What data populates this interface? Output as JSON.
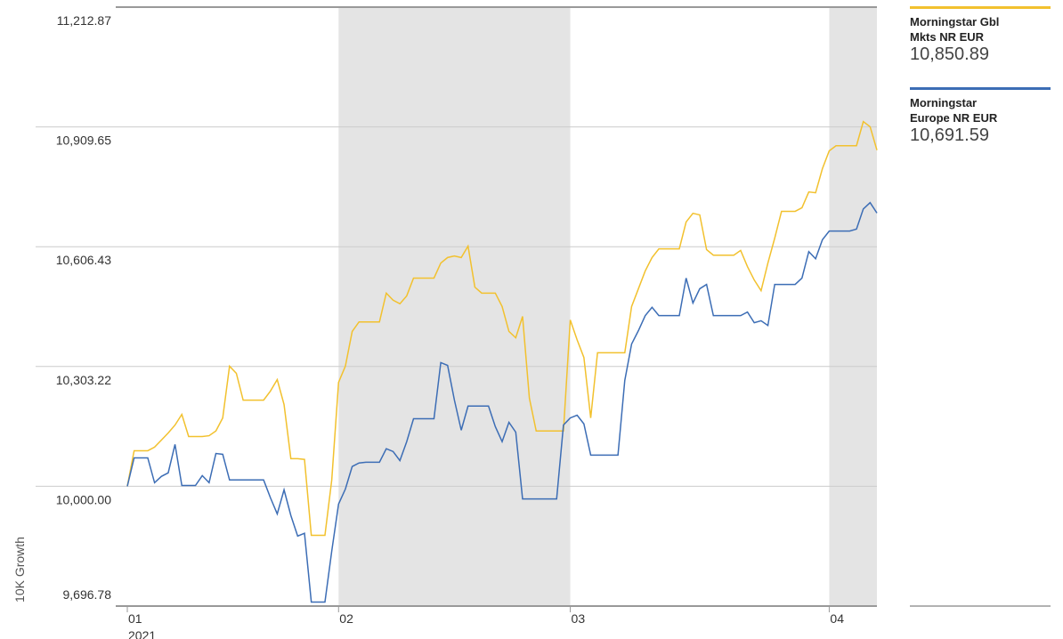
{
  "chart_data": {
    "type": "line",
    "y_label": "10K Growth",
    "year_label": "2021",
    "categories": [
      "01",
      null,
      null,
      null,
      null,
      null,
      null,
      null,
      null,
      null,
      null,
      null,
      null,
      null,
      null,
      null,
      null,
      null,
      null,
      null,
      null,
      null,
      null,
      null,
      null,
      null,
      null,
      null,
      null,
      null,
      null,
      "02",
      null,
      null,
      null,
      null,
      null,
      null,
      null,
      null,
      null,
      null,
      null,
      null,
      null,
      null,
      null,
      null,
      null,
      null,
      null,
      null,
      null,
      null,
      null,
      null,
      null,
      null,
      null,
      null,
      null,
      null,
      null,
      null,
      null,
      "03",
      null,
      null,
      null,
      null,
      null,
      null,
      null,
      null,
      null,
      null,
      null,
      null,
      null,
      null,
      null,
      null,
      null,
      null,
      null,
      null,
      null,
      null,
      null,
      null,
      null,
      null,
      null,
      null,
      null,
      null,
      null,
      null,
      null,
      null,
      null,
      null,
      null,
      "04",
      null,
      null,
      null,
      null,
      null,
      null,
      null
    ],
    "ylim": [
      9696.78,
      11212.87
    ],
    "yticks": [
      {
        "value": 9696.78,
        "label": "9,696.78"
      },
      {
        "value": 10000,
        "label": "10,000.00"
      },
      {
        "value": 10303.22,
        "label": "10,303.22"
      },
      {
        "value": 10606.43,
        "label": "10,606.43"
      },
      {
        "value": 10909.65,
        "label": "10,909.65"
      },
      {
        "value": 11212.87,
        "label": "11,212.87"
      }
    ],
    "grid": true,
    "series": [
      {
        "name": "Morningstar Gbl Mkts NR EUR",
        "color": "#f2c12e",
        "legend_value": {
          "value": 10850.89,
          "label": "10,850.89"
        },
        "values": [
          10000,
          10090,
          10090,
          10090,
          10099,
          10117,
          10135,
          10155,
          10182,
          10126,
          10126,
          10126,
          10128,
          10140,
          10173,
          10304,
          10286,
          10218,
          10218,
          10218,
          10218,
          10241,
          10270,
          10207,
          10070,
          10070,
          10068,
          9876,
          9876,
          9876,
          10016,
          10263,
          10304,
          10392,
          10416,
          10416,
          10416,
          10416,
          10489,
          10471,
          10462,
          10482,
          10527,
          10527,
          10527,
          10527,
          10565,
          10579,
          10583,
          10579,
          10608,
          10504,
          10489,
          10489,
          10489,
          10455,
          10392,
          10376,
          10430,
          10223,
          10140,
          10140,
          10140,
          10140,
          10140,
          10421,
          10371,
          10326,
          10173,
          10338,
          10338,
          10338,
          10338,
          10338,
          10455,
          10500,
          10545,
          10579,
          10601,
          10601,
          10601,
          10601,
          10669,
          10691,
          10687,
          10599,
          10585,
          10585,
          10585,
          10585,
          10597,
          10556,
          10522,
          10495,
          10565,
          10628,
          10696,
          10696,
          10696,
          10705,
          10745,
          10743,
          10804,
          10849,
          10862,
          10862,
          10862,
          10862,
          10923,
          10910,
          10850.89
        ]
      },
      {
        "name": "Morningstar Europe NR EUR",
        "color": "#3c6db5",
        "legend_value": {
          "value": 10691.59,
          "label": "10,691.59"
        },
        "values": [
          10000,
          10072,
          10072,
          10072,
          10009,
          10025,
          10034,
          10106,
          10002,
          10002,
          10002,
          10027,
          10009,
          10083,
          10081,
          10016,
          10016,
          10016,
          10016,
          10016,
          10016,
          9971,
          9930,
          9991,
          9926,
          9874,
          9881,
          9707,
          9707,
          9707,
          9836,
          9955,
          9993,
          10050,
          10059,
          10061,
          10061,
          10061,
          10095,
          10088,
          10065,
          10113,
          10171,
          10171,
          10171,
          10171,
          10313,
          10306,
          10218,
          10142,
          10203,
          10203,
          10203,
          10203,
          10151,
          10113,
          10162,
          10137,
          9968,
          9968,
          9968,
          9968,
          9968,
          9968,
          10155,
          10173,
          10180,
          10158,
          10079,
          10079,
          10079,
          10079,
          10079,
          10268,
          10360,
          10394,
          10432,
          10453,
          10432,
          10432,
          10432,
          10432,
          10527,
          10464,
          10500,
          10511,
          10432,
          10432,
          10432,
          10432,
          10432,
          10441,
          10414,
          10419,
          10407,
          10511,
          10511,
          10511,
          10511,
          10527,
          10594,
          10576,
          10624,
          10646,
          10646,
          10646,
          10646,
          10651,
          10702,
          10718,
          10691.59
        ]
      }
    ]
  }
}
